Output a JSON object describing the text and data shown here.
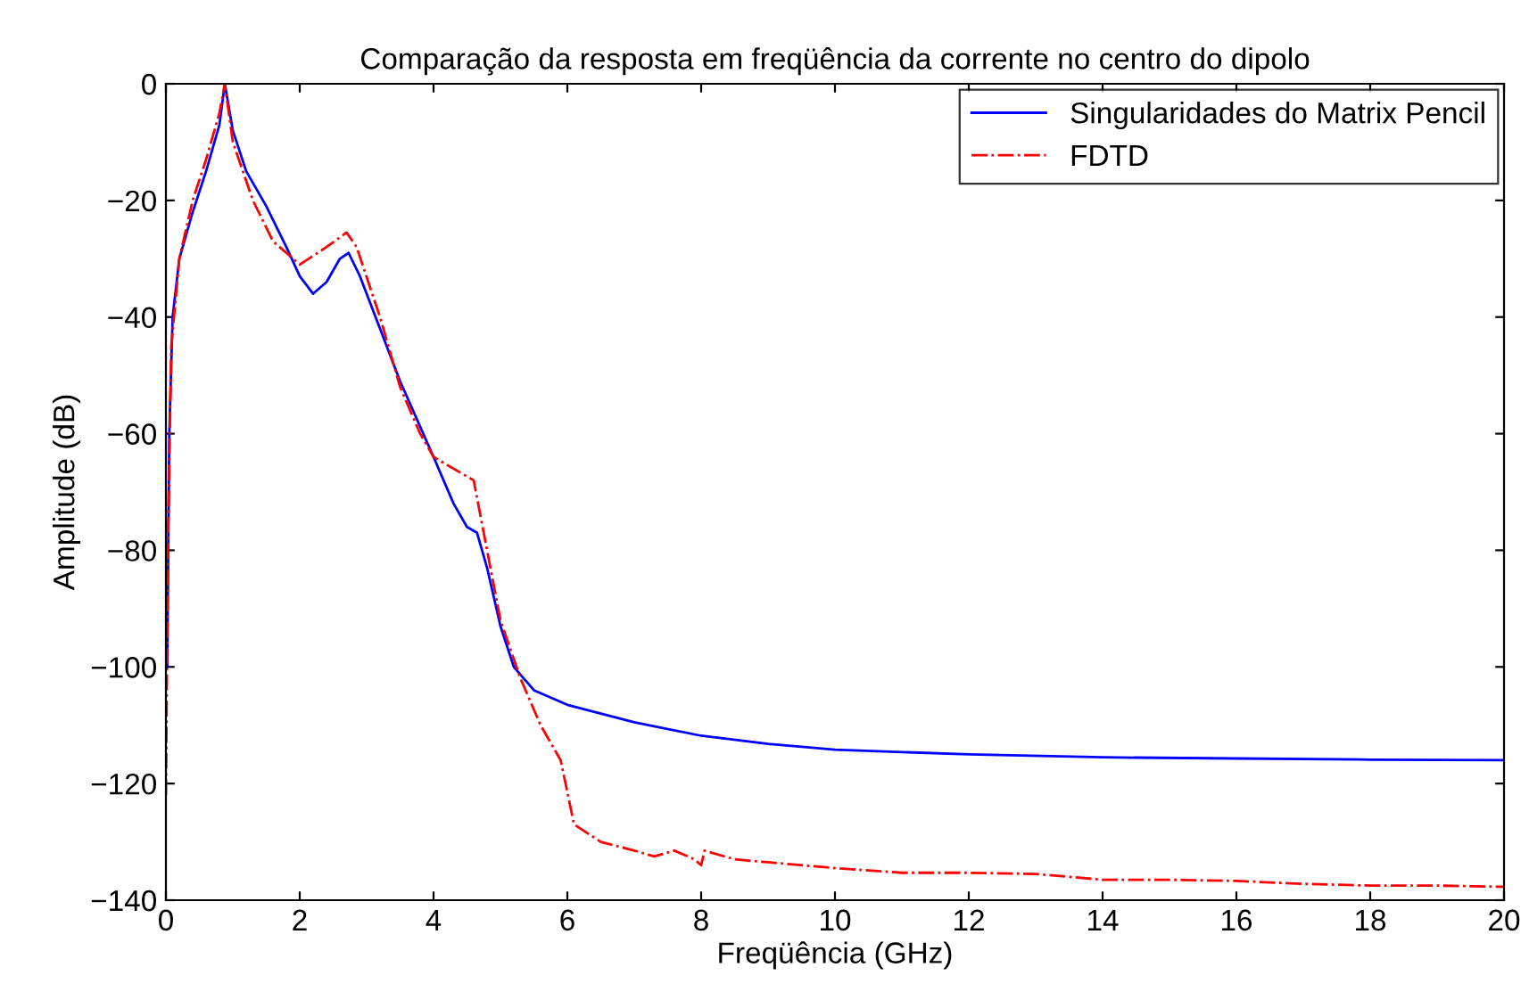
{
  "chart_data": {
    "type": "line",
    "title": "Comparação da resposta em freqüência da corrente no centro do dipolo",
    "xlabel": "Freqüência (GHz)",
    "ylabel": "Amplitude (dB)",
    "xlim": [
      0,
      20
    ],
    "xticks": [
      0,
      2,
      4,
      6,
      8,
      10,
      12,
      14,
      16,
      18,
      20
    ],
    "ylim": [
      -140,
      0
    ],
    "yticks": [
      -140,
      -120,
      -100,
      -80,
      -60,
      -40,
      -20,
      0
    ],
    "grid": false,
    "legend": "top right",
    "series": [
      {
        "name": "Singularidades do Matrix Pencil",
        "color": "#0000ff",
        "line_style": "solid",
        "x": [
          0.02,
          0.05,
          0.1,
          0.2,
          0.4,
          0.6,
          0.8,
          0.88,
          1.0,
          1.2,
          1.5,
          1.8,
          2.0,
          2.2,
          2.4,
          2.6,
          2.73,
          2.9,
          3.2,
          3.5,
          4.0,
          4.3,
          4.5,
          4.65,
          4.8,
          5.0,
          5.2,
          5.5,
          6,
          7,
          8,
          9,
          10,
          12,
          14,
          16,
          18,
          20
        ],
        "values": [
          -100,
          -60,
          -40,
          -30,
          -22,
          -15,
          -7,
          0,
          -8,
          -15,
          -21,
          -28,
          -33,
          -36,
          -34,
          -30,
          -29,
          -33,
          -42,
          -51,
          -64,
          -72,
          -76,
          -77,
          -83,
          -93,
          -100,
          -104,
          -106.5,
          -109.5,
          -111.8,
          -113.2,
          -114.2,
          -115,
          -115.5,
          -115.7,
          -115.9,
          -116
        ]
      },
      {
        "name": "FDTD",
        "color": "#ff0000",
        "line_style": "dashdot",
        "x": [
          0,
          0.03,
          0.08,
          0.2,
          0.4,
          0.6,
          0.8,
          0.88,
          1.0,
          1.3,
          1.6,
          2.0,
          2.4,
          2.7,
          2.85,
          3.2,
          3.5,
          3.8,
          4.0,
          4.3,
          4.6,
          4.8,
          5.0,
          5.3,
          5.6,
          5.9,
          6.1,
          6.5,
          7.0,
          7.3,
          7.6,
          7.9,
          8.0,
          8.05,
          8.5,
          9,
          10,
          11,
          12,
          13,
          14,
          15,
          16,
          17,
          18,
          19,
          20
        ],
        "values": [
          -122,
          -80,
          -45,
          -30,
          -20,
          -13,
          -5,
          0,
          -10,
          -20,
          -27,
          -31,
          -28,
          -25.5,
          -28,
          -40,
          -52,
          -60,
          -64,
          -66,
          -68,
          -80,
          -92,
          -102,
          -110,
          -116,
          -127,
          -130,
          -131.5,
          -132.5,
          -131.5,
          -133,
          -134,
          -131.5,
          -133,
          -133.5,
          -134.5,
          -135.3,
          -135.3,
          -135.5,
          -136.5,
          -136.5,
          -136.7,
          -137.2,
          -137.5,
          -137.5,
          -137.7
        ]
      }
    ]
  }
}
